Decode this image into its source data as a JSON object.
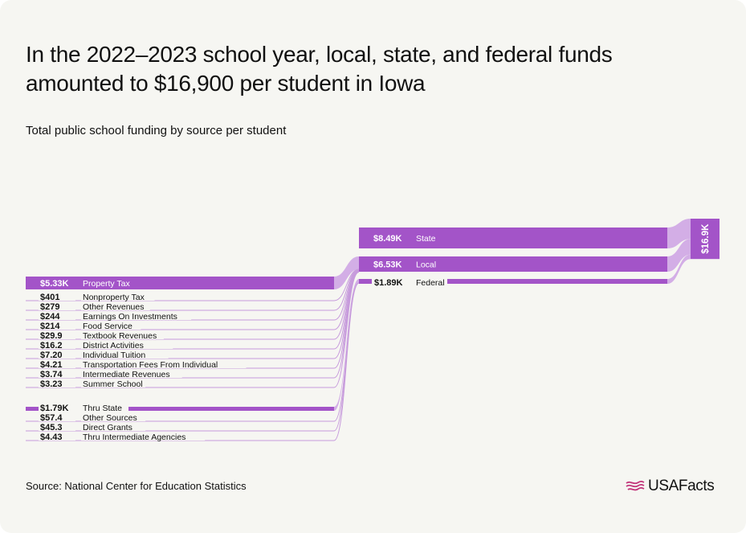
{
  "header": {
    "title": "In the 2022–2023 school year, local, state, and federal funds amounted to $16,900 per student in Iowa",
    "subtitle": "Total public school funding by source per student"
  },
  "footer": {
    "source": "Source: National Center for Education Statistics",
    "brand": "USAFacts"
  },
  "colors": {
    "accent": "#a354c8",
    "flow": "#d3aee6",
    "thin_flow": "#c79bdc",
    "text": "#111111",
    "background": "#f6f6f2"
  },
  "chart_data": {
    "type": "sankey",
    "title": "In the 2022–2023 school year, local, state, and federal funds amounted to $16,900 per student in Iowa",
    "subtitle": "Total public school funding by source per student",
    "unit": "USD per student",
    "total": {
      "label": "$16.9K",
      "value": 16900
    },
    "categories": [
      {
        "name": "State",
        "value": 8490,
        "label": "$8.49K"
      },
      {
        "name": "Local",
        "value": 6530,
        "label": "$6.53K"
      },
      {
        "name": "Federal",
        "value": 1890,
        "label": "$1.89K"
      }
    ],
    "local_sources": [
      {
        "name": "Property Tax",
        "value": 5330,
        "label": "$5.33K"
      },
      {
        "name": "Nonproperty Tax",
        "value": 401,
        "label": "$401"
      },
      {
        "name": "Other Revenues",
        "value": 279,
        "label": "$279"
      },
      {
        "name": "Earnings On Investments",
        "value": 244,
        "label": "$244"
      },
      {
        "name": "Food Service",
        "value": 214,
        "label": "$214"
      },
      {
        "name": "Textbook Revenues",
        "value": 29.9,
        "label": "$29.9"
      },
      {
        "name": "District Activities",
        "value": 16.2,
        "label": "$16.2"
      },
      {
        "name": "Individual Tuition",
        "value": 7.2,
        "label": "$7.20"
      },
      {
        "name": "Transportation Fees From Individual",
        "value": 4.21,
        "label": "$4.21"
      },
      {
        "name": "Intermediate Revenues",
        "value": 3.74,
        "label": "$3.74"
      },
      {
        "name": "Summer School",
        "value": 3.23,
        "label": "$3.23"
      }
    ],
    "federal_sources": [
      {
        "name": "Thru State",
        "value": 1790,
        "label": "$1.79K"
      },
      {
        "name": "Other Sources",
        "value": 57.4,
        "label": "$57.4"
      },
      {
        "name": "Direct Grants",
        "value": 45.3,
        "label": "$45.3"
      },
      {
        "name": "Thru Intermediate Agencies",
        "value": 4.43,
        "label": "$4.43"
      }
    ]
  }
}
